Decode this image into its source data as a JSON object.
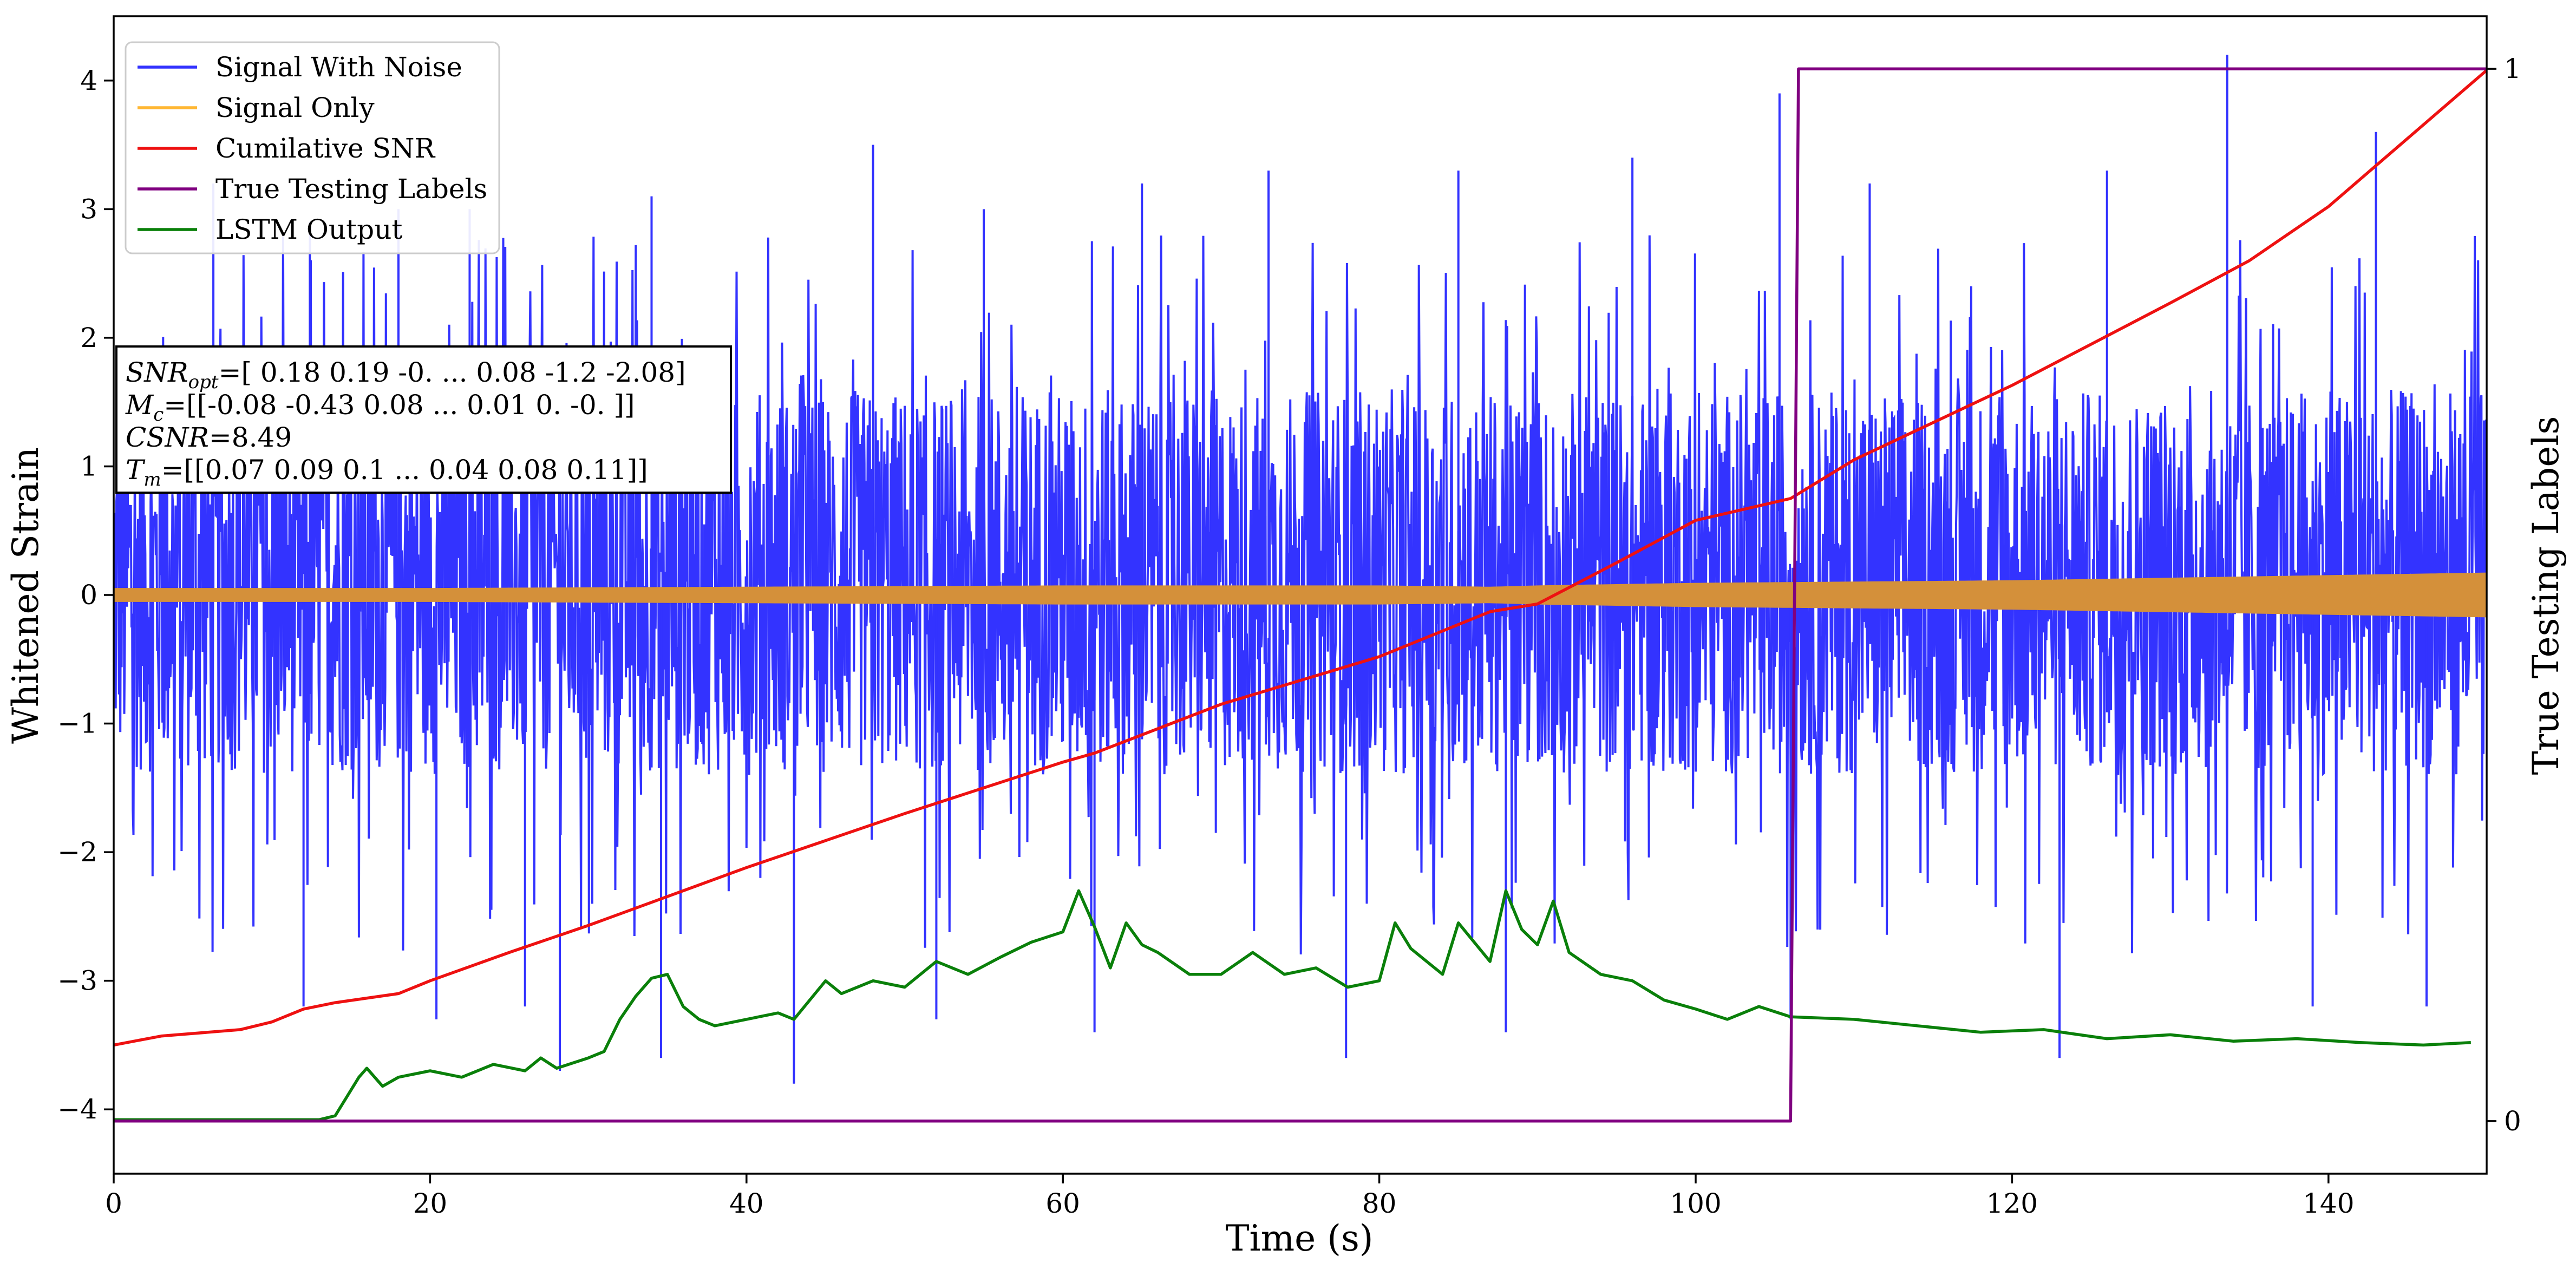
{
  "chart_data": {
    "type": "line",
    "title": "",
    "xlabel": "Time (s)",
    "ylabel": "Whitened Strain",
    "y2label": "True Testing Labels",
    "xlim": [
      0,
      150
    ],
    "ylim": [
      -4.5,
      4.5
    ],
    "y2lim": [
      -0.05,
      1.05
    ],
    "xticks": [
      0,
      20,
      40,
      60,
      80,
      100,
      120,
      140
    ],
    "yticks": [
      -4,
      -3,
      -2,
      -1,
      0,
      1,
      2,
      3,
      4
    ],
    "y2ticks": [
      0,
      1
    ],
    "legend_position": "top-left",
    "legend": [
      {
        "name": "Signal With Noise",
        "color": "#3333ff"
      },
      {
        "name": "Signal Only",
        "color": "#ffb733"
      },
      {
        "name": "Cumilative SNR",
        "color": "#ee1111"
      },
      {
        "name": "True Testing Labels",
        "color": "#800080"
      },
      {
        "name": "LSTM Output",
        "color": "#0a800a"
      }
    ],
    "annotation": {
      "line1": {
        "var": "SNR",
        "sub": "opt",
        "value": "=[ 0.18  0.19 -0.   ...  0.08 -1.2  -2.08]"
      },
      "line2": {
        "var": "M",
        "sub": "c",
        "value": "=[[-0.08 -0.43  0.08 ...  0.01  0.   -0.  ]]"
      },
      "line3": {
        "var": "CSNR",
        "sub": "",
        "value": "=8.49"
      },
      "line4": {
        "var": "T",
        "sub": "m",
        "value": "=[[0.07 0.09 0.1  ... 0.04 0.08 0.11]]"
      }
    },
    "series": [
      {
        "name": "Signal With Noise",
        "color": "#3333ff",
        "typical_range": [
          -1.4,
          1.6
        ],
        "max": 4.2,
        "min": -3.8,
        "spikes": [
          [
            6.3,
            3.2
          ],
          [
            12.4,
            2.9
          ],
          [
            18,
            3.0
          ],
          [
            22.5,
            3.0
          ],
          [
            34,
            3.1
          ],
          [
            48,
            3.5
          ],
          [
            55,
            3.0
          ],
          [
            65,
            3.2
          ],
          [
            73,
            3.3
          ],
          [
            85,
            3.3
          ],
          [
            96,
            3.4
          ],
          [
            105.3,
            3.9
          ],
          [
            111,
            3.2
          ],
          [
            126,
            3.3
          ],
          [
            133.6,
            4.2
          ],
          [
            143,
            3.6
          ],
          [
            12,
            -3.2
          ],
          [
            20.4,
            -3.3
          ],
          [
            26,
            -3.2
          ],
          [
            28.2,
            -3.7
          ],
          [
            34.6,
            -3.6
          ],
          [
            43,
            -3.8
          ],
          [
            52,
            -3.3
          ],
          [
            62,
            -3.4
          ],
          [
            77.9,
            -3.6
          ],
          [
            88,
            -3.4
          ],
          [
            106,
            -3.3
          ],
          [
            123,
            -3.6
          ],
          [
            139,
            -3.2
          ],
          [
            146.2,
            -3.2
          ]
        ]
      },
      {
        "name": "Signal Only",
        "color": "#ffb733",
        "x": [
          0,
          20,
          40,
          60,
          80,
          87,
          90,
          100,
          110,
          120,
          130,
          140,
          150
        ],
        "amplitude": [
          0.05,
          0.05,
          0.06,
          0.07,
          0.07,
          0.06,
          0.07,
          0.09,
          0.1,
          0.11,
          0.13,
          0.15,
          0.17
        ]
      },
      {
        "name": "Cumilative SNR",
        "color": "#ee1111",
        "x": [
          0,
          3,
          8,
          10,
          12,
          14,
          18,
          20,
          25,
          30,
          40,
          50,
          60,
          62,
          70,
          80,
          87,
          90,
          95,
          100,
          106,
          110,
          120,
          125,
          130,
          135,
          140,
          145,
          150
        ],
        "y": [
          -3.5,
          -3.43,
          -3.38,
          -3.32,
          -3.22,
          -3.17,
          -3.1,
          -3.0,
          -2.78,
          -2.57,
          -2.12,
          -1.7,
          -1.3,
          -1.23,
          -0.85,
          -0.48,
          -0.13,
          -0.07,
          0.25,
          0.58,
          0.75,
          1.05,
          1.63,
          1.95,
          2.27,
          2.6,
          3.02,
          3.55,
          4.08
        ]
      },
      {
        "name": "True Testing Labels",
        "color": "#800080",
        "axis": "right",
        "x": [
          0,
          106,
          106.5,
          150
        ],
        "y": [
          0,
          0,
          1,
          1
        ]
      },
      {
        "name": "LSTM Output",
        "color": "#0a800a",
        "x": [
          0,
          13,
          14,
          14.5,
          15,
          15.5,
          16,
          17,
          18,
          20,
          22,
          24,
          26,
          27,
          28,
          30,
          31,
          32,
          33,
          34,
          35,
          36,
          37,
          38,
          40,
          42,
          43,
          45,
          46,
          48,
          50,
          52,
          54,
          56,
          58,
          60,
          61,
          62,
          63,
          64,
          65,
          66,
          68,
          70,
          72,
          74,
          76,
          78,
          80,
          81,
          82,
          84,
          85,
          86,
          87,
          88,
          89,
          90,
          91,
          92,
          94,
          96,
          98,
          100,
          102,
          104,
          106,
          110,
          114,
          118,
          122,
          126,
          130,
          134,
          138,
          142,
          146,
          149
        ],
        "y": [
          -4.08,
          -4.08,
          -4.05,
          -3.95,
          -3.85,
          -3.75,
          -3.68,
          -3.82,
          -3.75,
          -3.7,
          -3.75,
          -3.65,
          -3.7,
          -3.6,
          -3.68,
          -3.6,
          -3.55,
          -3.3,
          -3.12,
          -2.98,
          -2.95,
          -3.2,
          -3.3,
          -3.35,
          -3.3,
          -3.25,
          -3.3,
          -3.0,
          -3.1,
          -3.0,
          -3.05,
          -2.85,
          -2.95,
          -2.82,
          -2.7,
          -2.62,
          -2.3,
          -2.58,
          -2.9,
          -2.55,
          -2.72,
          -2.78,
          -2.95,
          -2.95,
          -2.78,
          -2.95,
          -2.9,
          -3.05,
          -3.0,
          -2.55,
          -2.75,
          -2.95,
          -2.55,
          -2.7,
          -2.85,
          -2.3,
          -2.6,
          -2.72,
          -2.38,
          -2.78,
          -2.95,
          -3.0,
          -3.15,
          -3.22,
          -3.3,
          -3.2,
          -3.28,
          -3.3,
          -3.35,
          -3.4,
          -3.38,
          -3.45,
          -3.42,
          -3.47,
          -3.45,
          -3.48,
          -3.5,
          -3.48
        ]
      }
    ]
  }
}
